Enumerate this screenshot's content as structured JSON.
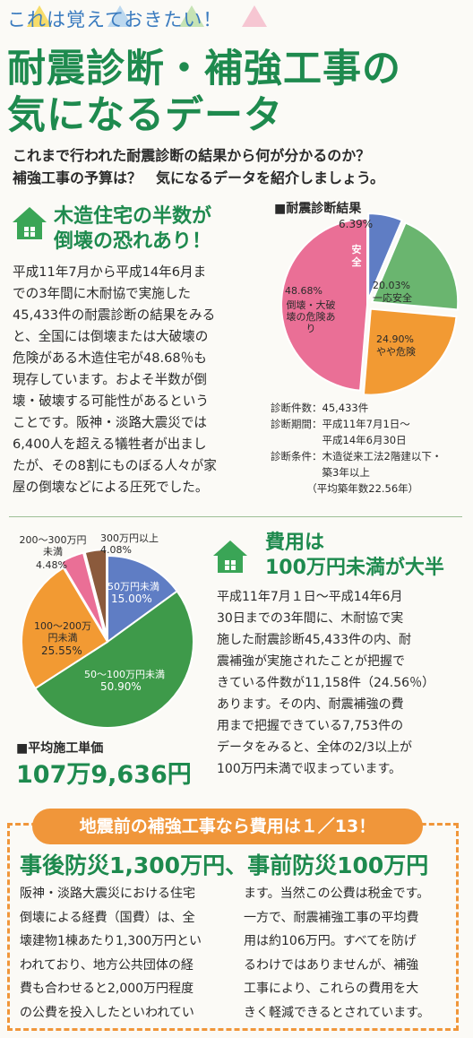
{
  "header": {
    "eyebrow": "これは覚えておきたい！",
    "title_line1": "耐震診断・補強工事の",
    "title_line2": "気になるデータ",
    "lead_line1": "これまで行われた耐震診断の結果から何が分かるのか？",
    "lead_line2": "補強工事の予算は？　気になるデータを紹介しましょう。"
  },
  "section1": {
    "heading_line1": "木造住宅の半数が",
    "heading_line2": "倒壊の恐れあり！",
    "body_lines": [
      "平成11年7月から平成14年6月ま",
      "での3年間に木耐協で実施した",
      "45,433件の耐震診断の結果をみる",
      "と、全国には倒壊または大破壊の",
      "危険がある木造住宅が48.68％も",
      "現存しています。およそ半数が倒",
      "壊・破壊する可能性があるという",
      "ことです。阪神・淡路大震災では",
      "6,400人を超える犠牲者が出まし",
      "たが、その8割にものぼる人々が家",
      "屋の倒壊などによる圧死でした。"
    ]
  },
  "diagnosis": {
    "label": "■耐震診断結果",
    "info": [
      "診断件数：45,433件",
      "診断期間：平成11年7月1日～",
      "　　　　　平成14年6月30日",
      "診断条件：木造従来工法2階建以下・",
      "　　　　　築3年以上",
      "　　　　（平均築年数22.56年）"
    ]
  },
  "section2": {
    "heading_line1": "費用は",
    "heading_line2": "100万円未満が大半",
    "body_lines": [
      "平成11年7月１日～平成14年6月",
      "30日までの3年間に、木耐協で実",
      "施した耐震診断45,433件の内、耐",
      "震補強が実施されたことが把握で",
      "きている件数が11,158件（24.56％）",
      "あります。その内、耐震補強の費",
      "用まで把握できている7,753件の",
      "データをみると、全体の2/3以上が",
      "100万円未満で収まっています。"
    ]
  },
  "cost": {
    "label": "■平均施工単価",
    "value": "107万9,636円"
  },
  "section3": {
    "banner": "地震前の補強工事なら費用は１／13！",
    "headline": "事後防災1,300万円、事前防災100万円",
    "left_lines": [
      "阪神・淡路大震災における住宅",
      "倒壊による経費（国費）は、全",
      "壊建物1棟あたり1,300万円とい",
      "われており、地方公共団体の経",
      "費も合わせると2,000万円程度",
      "の公費を投入したといわれてい"
    ],
    "right_lines": [
      "ます。当然この公費は税金です。",
      "一方で、耐震補強工事の平均費",
      "用は約106万円。すべてを防げ",
      "るわけではありませんが、補強",
      "工事により、これらの費用を大",
      "きく軽減できるとされています。"
    ]
  },
  "chart_data": [
    {
      "type": "pie",
      "title": "■耐震診断結果",
      "slices": [
        {
          "label": "安全",
          "value": 6.39,
          "value_label": "6.39%",
          "color": "#5f7dc4"
        },
        {
          "label": "一応安全",
          "value": 20.03,
          "value_label": "20.03%",
          "color": "#6ab56f"
        },
        {
          "label": "やや危険",
          "value": 24.9,
          "value_label": "24.90%",
          "color": "#f29a33"
        },
        {
          "label": "倒壊・大破壊の危険あり",
          "value": 48.68,
          "value_label": "48.68%",
          "color": "#ea6f96"
        }
      ]
    },
    {
      "type": "pie",
      "title": "",
      "slices": [
        {
          "label": "50万円未満",
          "value": 15.0,
          "value_label": "15.00%",
          "color": "#5f7dc4"
        },
        {
          "label": "50～100万円未満",
          "value": 50.9,
          "value_label": "50.90%",
          "color": "#3e9a4a"
        },
        {
          "label": "100～200万円未満",
          "value": 25.55,
          "value_label": "25.55%",
          "color": "#f29a33"
        },
        {
          "label": "200～300万円未満",
          "value": 4.48,
          "value_label": "4.48%",
          "color": "#ea6f96"
        },
        {
          "label": "300万円以上",
          "value": 4.08,
          "value_label": "4.08%",
          "color": "#8b5a3c"
        }
      ]
    }
  ]
}
